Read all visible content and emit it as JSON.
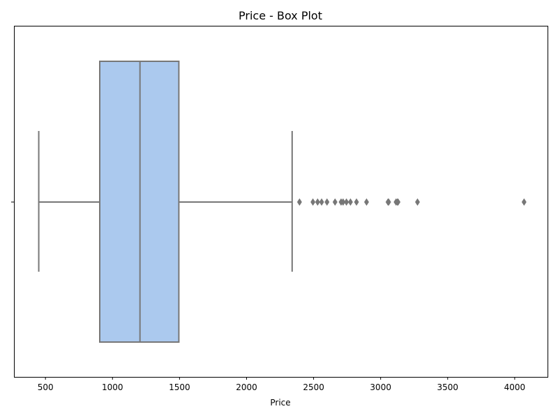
{
  "chart_data": {
    "type": "box",
    "title": "Price - Box Plot",
    "xlabel": "Price",
    "ylabel": "",
    "xlim": [
      265,
      4245
    ],
    "x_ticks": [
      500,
      1000,
      1500,
      2000,
      2500,
      3000,
      3500,
      4000
    ],
    "x_tick_labels": [
      "500",
      "1000",
      "1500",
      "2000",
      "2500",
      "3000",
      "3500",
      "4000"
    ],
    "grid": false,
    "legend": "none",
    "box": {
      "whisker_low": 450,
      "q1": 905,
      "median": 1205,
      "q3": 1495,
      "whisker_high": 2340
    },
    "outliers": [
      2395,
      2495,
      2530,
      2560,
      2600,
      2660,
      2705,
      2720,
      2745,
      2775,
      2820,
      2895,
      3055,
      3060,
      3115,
      3125,
      3130,
      3275,
      4070
    ],
    "colors": {
      "box_fill": "#abc9ee",
      "line": "#777777",
      "axis": "#000000"
    }
  }
}
